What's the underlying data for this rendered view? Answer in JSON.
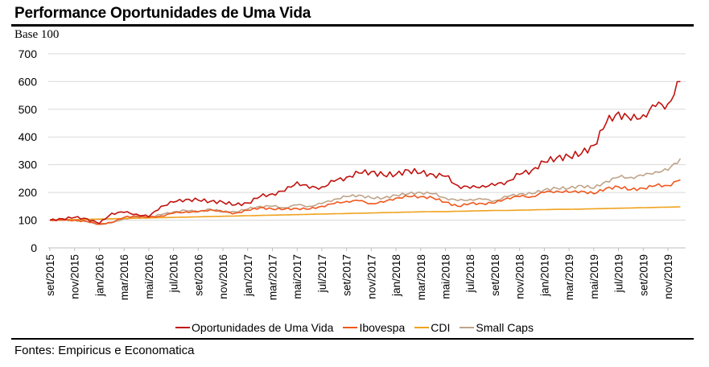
{
  "header": {
    "title": "Performance Oportunidades de Uma Vida",
    "subtitle": "Base 100"
  },
  "footer": {
    "source": "Fontes: Empiricus e Economatica"
  },
  "chart_data": {
    "type": "line",
    "title": "Performance Oportunidades de Uma Vida",
    "ylabel": "Base 100",
    "ylim": [
      0,
      700
    ],
    "yticks": [
      0,
      100,
      200,
      300,
      400,
      500,
      600,
      700
    ],
    "grid": true,
    "legend": "bottom",
    "xtick_labels": [
      "set/2015",
      "nov/2015",
      "jan/2016",
      "mar/2016",
      "mai/2016",
      "jul/2016",
      "set/2016",
      "nov/2016",
      "jan/2017",
      "mar/2017",
      "mai/2017",
      "jul/2017",
      "set/2017",
      "nov/2017",
      "jan/2018",
      "mar/2018",
      "mai/2018",
      "jul/2018",
      "set/2018",
      "nov/2018",
      "jan/2019",
      "mar/2019",
      "mai/2019",
      "jul/2019",
      "set/2019",
      "nov/2019"
    ],
    "x": [
      "2015-09",
      "2015-10",
      "2015-11",
      "2015-12",
      "2016-01",
      "2016-02",
      "2016-03",
      "2016-04",
      "2016-05",
      "2016-06",
      "2016-07",
      "2016-08",
      "2016-09",
      "2016-10",
      "2016-11",
      "2016-12",
      "2017-01",
      "2017-02",
      "2017-03",
      "2017-04",
      "2017-05",
      "2017-06",
      "2017-07",
      "2017-08",
      "2017-09",
      "2017-10",
      "2017-11",
      "2017-12",
      "2018-01",
      "2018-02",
      "2018-03",
      "2018-04",
      "2018-05",
      "2018-06",
      "2018-07",
      "2018-08",
      "2018-09",
      "2018-10",
      "2018-11",
      "2018-12",
      "2019-01",
      "2019-02",
      "2019-03",
      "2019-04",
      "2019-05",
      "2019-06",
      "2019-07",
      "2019-08",
      "2019-09",
      "2019-10",
      "2019-11",
      "2019-12"
    ],
    "series": [
      {
        "name": "Oportunidades de Uma Vida",
        "color": "#c0130f",
        "values": [
          100,
          105,
          110,
          105,
          88,
          125,
          128,
          122,
          112,
          150,
          165,
          175,
          172,
          168,
          165,
          155,
          162,
          185,
          195,
          205,
          238,
          215,
          220,
          240,
          255,
          270,
          275,
          262,
          265,
          280,
          270,
          265,
          258,
          225,
          215,
          225,
          225,
          240,
          265,
          280,
          310,
          325,
          330,
          340,
          370,
          450,
          490,
          460,
          480,
          510,
          520,
          600
        ]
      },
      {
        "name": "Ibovespa",
        "color": "#f0571c",
        "values": [
          100,
          100,
          100,
          95,
          85,
          92,
          110,
          115,
          110,
          115,
          125,
          130,
          130,
          138,
          130,
          125,
          135,
          145,
          140,
          140,
          142,
          140,
          150,
          160,
          168,
          170,
          160,
          165,
          180,
          185,
          185,
          180,
          165,
          150,
          160,
          160,
          162,
          180,
          185,
          185,
          200,
          205,
          200,
          205,
          195,
          215,
          220,
          210,
          215,
          225,
          225,
          245
        ]
      },
      {
        "name": "CDI",
        "color": "#f0a21e",
        "values": [
          100,
          101,
          102,
          103,
          104,
          105,
          106,
          107,
          108,
          109,
          110,
          111,
          112,
          113,
          114,
          115,
          116,
          117,
          118,
          119,
          120,
          121,
          122,
          123,
          124,
          125,
          126,
          127,
          128,
          129,
          130,
          131,
          131,
          132,
          133,
          134,
          135,
          135,
          136,
          137,
          138,
          139,
          139,
          140,
          141,
          142,
          143,
          144,
          145,
          146,
          147,
          148
        ]
      },
      {
        "name": "Small Caps",
        "color": "#bfa48a",
        "values": [
          100,
          100,
          100,
          95,
          85,
          90,
          105,
          110,
          110,
          120,
          130,
          135,
          130,
          140,
          130,
          130,
          140,
          150,
          150,
          145,
          155,
          150,
          160,
          175,
          185,
          190,
          180,
          180,
          190,
          195,
          200,
          195,
          180,
          170,
          175,
          175,
          170,
          185,
          195,
          195,
          210,
          215,
          215,
          225,
          215,
          240,
          255,
          255,
          260,
          275,
          280,
          322
        ]
      }
    ]
  }
}
